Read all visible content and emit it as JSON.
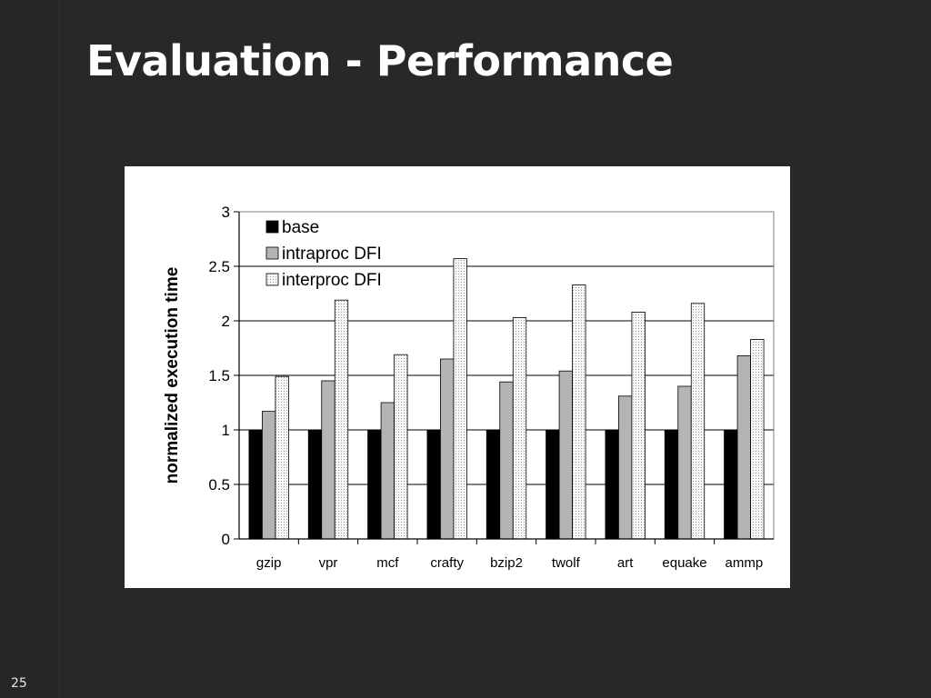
{
  "slide": {
    "title": "Evaluation - Performance",
    "number": "25"
  },
  "colors": {
    "background": "#282828",
    "title": "#ffffff",
    "base": "#000000",
    "intraproc": "#b4b4b4",
    "interproc": "#f7f7f7",
    "grid": "#000000"
  },
  "chart_data": {
    "type": "bar",
    "title": "",
    "xlabel": "",
    "ylabel": "normalized execution time",
    "ylim": [
      0,
      3
    ],
    "yticks": [
      "0",
      "0.5",
      "1",
      "1.5",
      "2",
      "2.5",
      "3"
    ],
    "grid": "horizontal",
    "legend_position": "top-left",
    "categories": [
      "gzip",
      "vpr",
      "mcf",
      "crafty",
      "bzip2",
      "twolf",
      "art",
      "equake",
      "ammp"
    ],
    "series": [
      {
        "name": "base",
        "pattern": "solid-black",
        "values": [
          1,
          1,
          1,
          1,
          1,
          1,
          1,
          1,
          1
        ]
      },
      {
        "name": "intraproc DFI",
        "pattern": "solid-gray",
        "values": [
          1.17,
          1.45,
          1.25,
          1.65,
          1.44,
          1.54,
          1.31,
          1.4,
          1.68
        ]
      },
      {
        "name": "interproc DFI",
        "pattern": "dotted",
        "values": [
          1.49,
          2.19,
          1.69,
          2.57,
          2.03,
          2.33,
          2.08,
          2.16,
          1.83
        ]
      }
    ]
  }
}
